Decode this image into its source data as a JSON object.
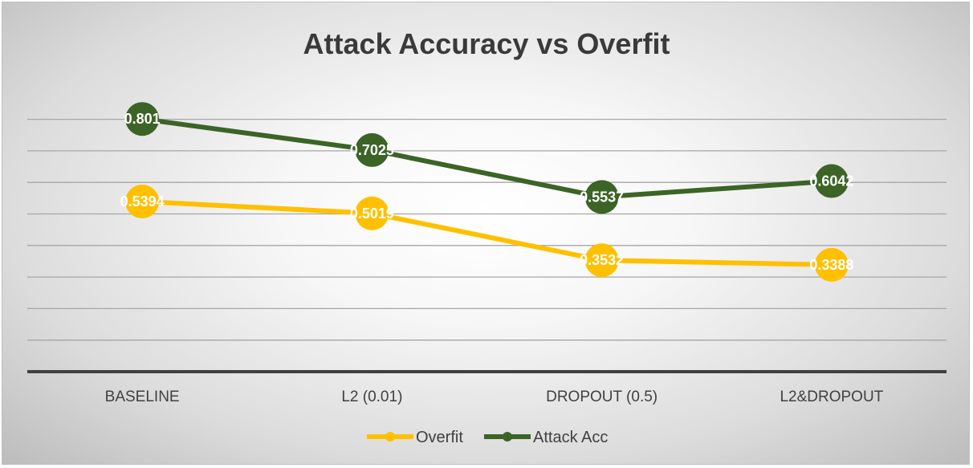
{
  "chart_data": {
    "type": "line",
    "title": "Attack Accuracy vs Overfit",
    "categories": [
      "BASELINE",
      "L2 (0.01)",
      "DROPOUT (0.5)",
      "L2&DROPOUT"
    ],
    "series": [
      {
        "name": "Overfit",
        "color": "#FFC000",
        "values": [
          0.5394,
          0.5019,
          0.3532,
          0.3388
        ],
        "labels": [
          "0.5394",
          "0.5019",
          "0.3532",
          "0.3388"
        ]
      },
      {
        "name": "Attack Acc",
        "color": "#3B6426",
        "values": [
          0.801,
          0.7025,
          0.5537,
          0.6042
        ],
        "labels": [
          "0.801",
          "0.7025",
          "0.5537",
          "0.6042"
        ]
      }
    ],
    "ylim": [
      0,
      0.8
    ],
    "grid": true,
    "legend": "bottom",
    "xlabel": "",
    "ylabel": ""
  }
}
